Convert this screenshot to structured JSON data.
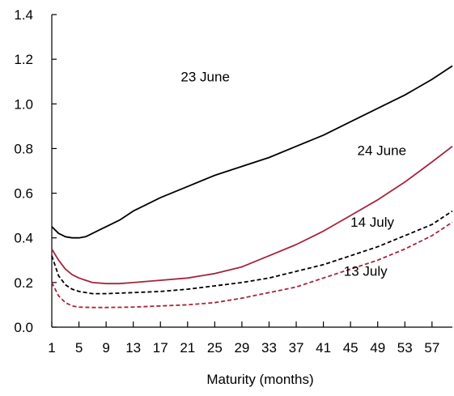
{
  "chart_data": {
    "type": "line",
    "title": "",
    "xlabel": "Maturity (months)",
    "ylabel": "",
    "xlim": [
      1,
      60
    ],
    "ylim": [
      0,
      1.4
    ],
    "x_ticks": [
      1,
      5,
      9,
      13,
      17,
      21,
      25,
      29,
      33,
      37,
      41,
      45,
      49,
      53,
      57
    ],
    "x_tick_labels": [
      "1",
      "5",
      "9",
      "13",
      "17",
      "21",
      "25",
      "29",
      "33",
      "37",
      "41",
      "45",
      "49",
      "53",
      "57"
    ],
    "y_ticks": [
      0,
      0.2,
      0.4,
      0.6,
      0.8,
      1.0,
      1.2,
      1.4
    ],
    "y_tick_labels": [
      "0.0",
      "0.2",
      "0.4",
      "0.6",
      "0.8",
      "1.0",
      "1.2",
      "1.4"
    ],
    "grid": false,
    "legend": "inline labels",
    "series": [
      {
        "name": "23 June",
        "color": "#000000",
        "dash": "solid",
        "points": [
          [
            1,
            0.45
          ],
          [
            2,
            0.42
          ],
          [
            3,
            0.405
          ],
          [
            4,
            0.4
          ],
          [
            5,
            0.4
          ],
          [
            6,
            0.405
          ],
          [
            7,
            0.42
          ],
          [
            9,
            0.45
          ],
          [
            11,
            0.48
          ],
          [
            13,
            0.52
          ],
          [
            17,
            0.58
          ],
          [
            21,
            0.63
          ],
          [
            25,
            0.68
          ],
          [
            29,
            0.72
          ],
          [
            33,
            0.76
          ],
          [
            37,
            0.81
          ],
          [
            41,
            0.86
          ],
          [
            45,
            0.92
          ],
          [
            49,
            0.98
          ],
          [
            53,
            1.04
          ],
          [
            57,
            1.11
          ],
          [
            60,
            1.17
          ]
        ]
      },
      {
        "name": "24 June",
        "color": "#a6243e",
        "dash": "solid",
        "points": [
          [
            1,
            0.35
          ],
          [
            2,
            0.3
          ],
          [
            3,
            0.26
          ],
          [
            4,
            0.235
          ],
          [
            5,
            0.22
          ],
          [
            6,
            0.21
          ],
          [
            7,
            0.2
          ],
          [
            9,
            0.195
          ],
          [
            11,
            0.195
          ],
          [
            13,
            0.2
          ],
          [
            17,
            0.21
          ],
          [
            21,
            0.22
          ],
          [
            25,
            0.24
          ],
          [
            29,
            0.27
          ],
          [
            33,
            0.32
          ],
          [
            37,
            0.37
          ],
          [
            41,
            0.43
          ],
          [
            45,
            0.5
          ],
          [
            49,
            0.57
          ],
          [
            53,
            0.65
          ],
          [
            57,
            0.74
          ],
          [
            60,
            0.81
          ]
        ]
      },
      {
        "name": "14 July",
        "color": "#000000",
        "dash": "dashed",
        "points": [
          [
            1,
            0.32
          ],
          [
            2,
            0.23
          ],
          [
            3,
            0.19
          ],
          [
            4,
            0.17
          ],
          [
            5,
            0.16
          ],
          [
            7,
            0.15
          ],
          [
            9,
            0.15
          ],
          [
            13,
            0.155
          ],
          [
            17,
            0.16
          ],
          [
            21,
            0.17
          ],
          [
            25,
            0.185
          ],
          [
            29,
            0.2
          ],
          [
            33,
            0.22
          ],
          [
            37,
            0.25
          ],
          [
            41,
            0.28
          ],
          [
            45,
            0.32
          ],
          [
            49,
            0.36
          ],
          [
            53,
            0.41
          ],
          [
            57,
            0.46
          ],
          [
            60,
            0.52
          ]
        ]
      },
      {
        "name": "13 July",
        "color": "#a6243e",
        "dash": "dashed",
        "points": [
          [
            1,
            0.2
          ],
          [
            2,
            0.14
          ],
          [
            3,
            0.11
          ],
          [
            4,
            0.095
          ],
          [
            5,
            0.09
          ],
          [
            7,
            0.088
          ],
          [
            9,
            0.088
          ],
          [
            13,
            0.09
          ],
          [
            17,
            0.095
          ],
          [
            21,
            0.1
          ],
          [
            25,
            0.11
          ],
          [
            29,
            0.13
          ],
          [
            33,
            0.155
          ],
          [
            37,
            0.18
          ],
          [
            41,
            0.22
          ],
          [
            45,
            0.26
          ],
          [
            49,
            0.3
          ],
          [
            53,
            0.35
          ],
          [
            57,
            0.41
          ],
          [
            60,
            0.47
          ]
        ]
      }
    ],
    "annotations": [
      {
        "text": "23 June",
        "x": 20,
        "y": 1.1
      },
      {
        "text": "24 June",
        "x": 46,
        "y": 0.77
      },
      {
        "text": "14 July",
        "x": 45,
        "y": 0.45
      },
      {
        "text": "13 July",
        "x": 44,
        "y": 0.23
      }
    ]
  }
}
